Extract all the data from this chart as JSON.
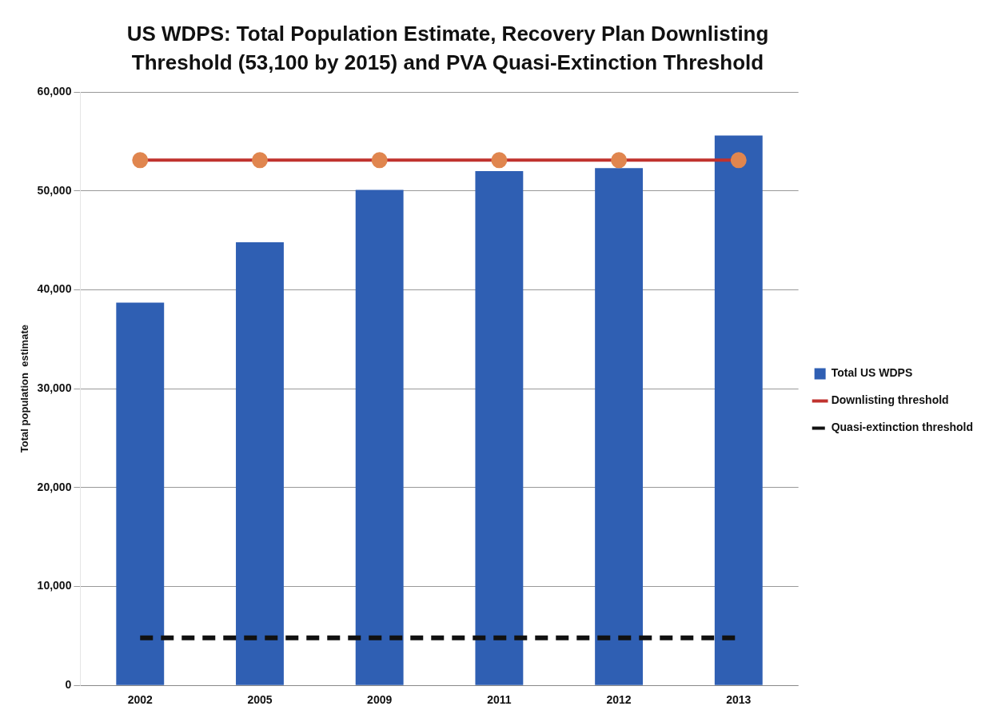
{
  "chart_data": {
    "type": "bar",
    "title": "US WDPS: Total Population Estimate, Recovery Plan Downlisting Threshold (53,100 by 2015) and PVA Quasi-Extinction Threshold",
    "ylabel": "Total population  estimate",
    "categories": [
      "2002",
      "2005",
      "2009",
      "2011",
      "2012",
      "2013"
    ],
    "series": [
      {
        "name": "Total US WDPS",
        "color": "#2f5fb3",
        "values": [
          38700,
          44800,
          50100,
          52000,
          52300,
          55600
        ]
      },
      {
        "name": "Downlisting threshold",
        "type": "line",
        "color": "#c0322e",
        "marker": "circle",
        "line_style": "solid",
        "values": [
          53100,
          53100,
          53100,
          53100,
          53100,
          53100
        ]
      },
      {
        "name": "Quasi-extinction threshold",
        "type": "line",
        "color": "#111111",
        "marker": "none",
        "line_style": "dashed",
        "values": [
          4800,
          4800,
          4800,
          4800,
          4800,
          4800
        ]
      }
    ],
    "ylim": [
      0,
      60000
    ],
    "yticks": [
      {
        "value": 0,
        "label": "0"
      },
      {
        "value": 10000,
        "label": "10,000"
      },
      {
        "value": 20000,
        "label": "20,000"
      },
      {
        "value": 30000,
        "label": "30,000"
      },
      {
        "value": 40000,
        "label": "40,000"
      },
      {
        "value": 50000,
        "label": "50,000"
      },
      {
        "value": 60000,
        "label": "60,000"
      }
    ],
    "grid": "y",
    "legend": "right"
  }
}
